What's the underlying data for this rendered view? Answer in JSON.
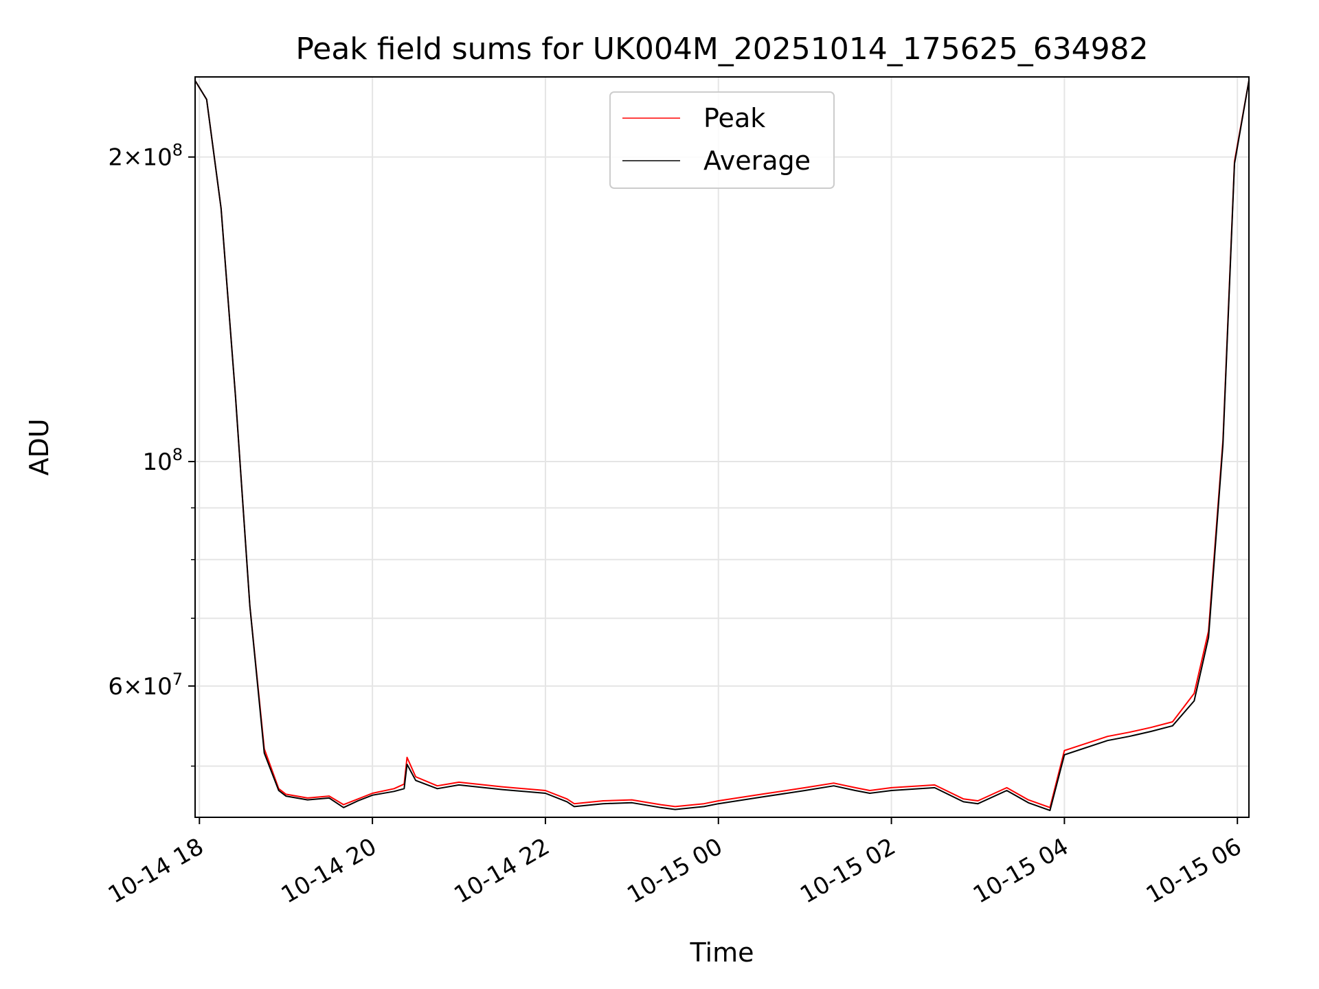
{
  "chart_data": {
    "type": "line",
    "title": "Peak field sums for UK004M_20251014_175625_634982",
    "xlabel": "Time",
    "ylabel": "ADU",
    "yscale": "log",
    "ylim": [
      44500000,
      240000000
    ],
    "xlim": [
      "2025-10-14 17:57",
      "2025-10-15 06:08"
    ],
    "grid": true,
    "legend_placement": "upper center",
    "x_tick_labels": [
      "10-14 18",
      "10-14 20",
      "10-14 22",
      "10-15 00",
      "10-15 02",
      "10-15 04",
      "10-15 06"
    ],
    "x_ticks": [
      "2025-10-14 18:00",
      "2025-10-14 20:00",
      "2025-10-14 22:00",
      "2025-10-15 00:00",
      "2025-10-15 02:00",
      "2025-10-15 04:00",
      "2025-10-15 06:00"
    ],
    "y_major_ticks": [
      {
        "value": 200000000,
        "mantissa": "2",
        "exponent": "8"
      },
      {
        "value": 100000000,
        "mantissa": "",
        "exponent": "8"
      },
      {
        "value": 60000000,
        "mantissa": "6",
        "exponent": "7"
      }
    ],
    "y_minor_ticks": [
      50000000,
      70000000,
      80000000,
      90000000
    ],
    "x": [
      "2025-10-14 17:57",
      "2025-10-14 18:05",
      "2025-10-14 18:15",
      "2025-10-14 18:25",
      "2025-10-14 18:35",
      "2025-10-14 18:45",
      "2025-10-14 18:55",
      "2025-10-14 19:00",
      "2025-10-14 19:15",
      "2025-10-14 19:30",
      "2025-10-14 19:40",
      "2025-10-14 19:50",
      "2025-10-14 20:00",
      "2025-10-14 20:15",
      "2025-10-14 20:22",
      "2025-10-14 20:24",
      "2025-10-14 20:30",
      "2025-10-14 20:45",
      "2025-10-14 21:00",
      "2025-10-14 21:30",
      "2025-10-14 22:00",
      "2025-10-14 22:15",
      "2025-10-14 22:20",
      "2025-10-14 22:40",
      "2025-10-14 23:00",
      "2025-10-14 23:20",
      "2025-10-14 23:30",
      "2025-10-14 23:50",
      "2025-10-15 00:00",
      "2025-10-15 00:30",
      "2025-10-15 01:00",
      "2025-10-15 01:20",
      "2025-10-15 01:35",
      "2025-10-15 01:45",
      "2025-10-15 02:00",
      "2025-10-15 02:30",
      "2025-10-15 02:50",
      "2025-10-15 03:00",
      "2025-10-15 03:20",
      "2025-10-15 03:35",
      "2025-10-15 03:50",
      "2025-10-15 04:00",
      "2025-10-15 04:30",
      "2025-10-15 04:45",
      "2025-10-15 05:00",
      "2025-10-15 05:15",
      "2025-10-15 05:30",
      "2025-10-15 05:40",
      "2025-10-15 05:50",
      "2025-10-15 05:58",
      "2025-10-15 06:08"
    ],
    "series": [
      {
        "name": "Peak",
        "color": "#ff0000",
        "values": [
          238000000,
          228000000,
          178000000,
          116000000,
          72000000,
          52000000,
          47500000,
          46900000,
          46500000,
          46700000,
          45800000,
          46400000,
          47000000,
          47500000,
          48000000,
          51000000,
          48800000,
          47800000,
          48200000,
          47700000,
          47300000,
          46400000,
          45900000,
          46200000,
          46300000,
          45800000,
          45600000,
          45900000,
          46200000,
          46900000,
          47600000,
          48100000,
          47600000,
          47300000,
          47600000,
          47900000,
          46400000,
          46200000,
          47600000,
          46300000,
          45500000,
          51800000,
          53500000,
          54000000,
          54600000,
          55300000,
          59000000,
          68000000,
          105000000,
          198000000,
          238000000
        ]
      },
      {
        "name": "Average",
        "color": "#000000",
        "values": [
          238000000,
          228000000,
          178000000,
          116000000,
          72000000,
          51500000,
          47300000,
          46700000,
          46300000,
          46500000,
          45500000,
          46200000,
          46800000,
          47200000,
          47500000,
          50200000,
          48400000,
          47500000,
          47900000,
          47400000,
          47000000,
          46100000,
          45600000,
          45900000,
          46000000,
          45500000,
          45300000,
          45600000,
          45900000,
          46600000,
          47300000,
          47800000,
          47300000,
          47000000,
          47300000,
          47600000,
          46100000,
          45900000,
          47300000,
          46000000,
          45200000,
          51300000,
          53000000,
          53500000,
          54100000,
          54800000,
          58000000,
          67000000,
          104000000,
          197000000,
          238000000
        ]
      }
    ]
  }
}
